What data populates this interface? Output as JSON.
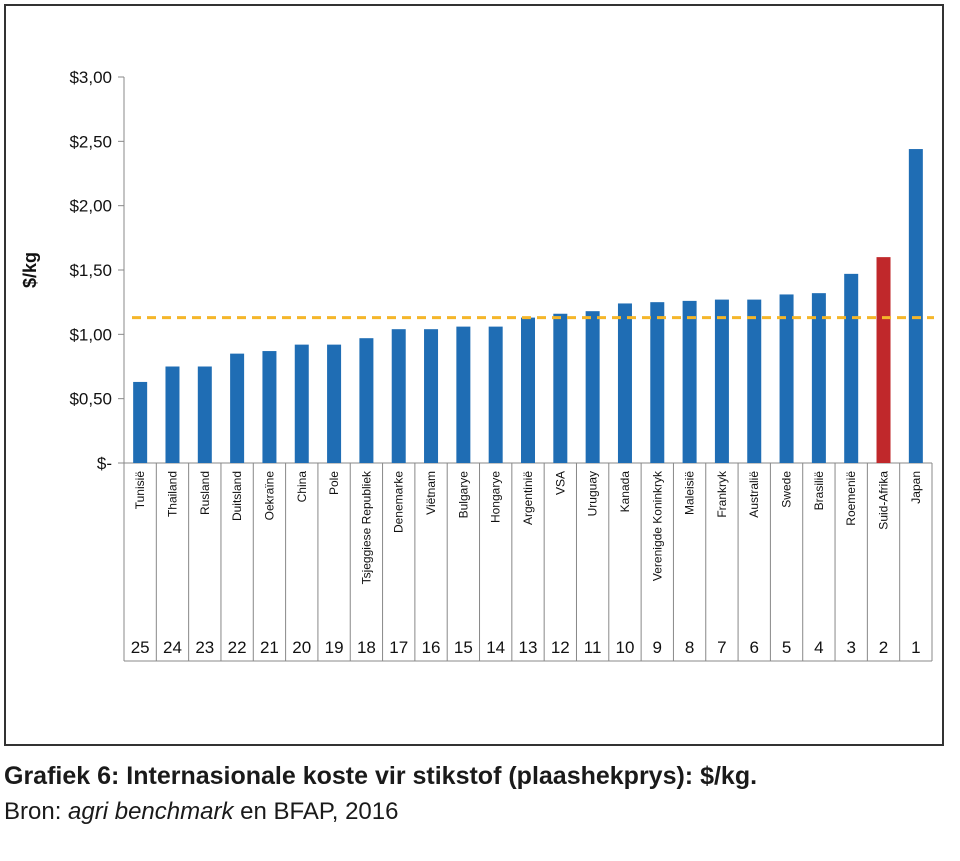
{
  "chart_data": {
    "type": "bar",
    "ylabel": "$/kg",
    "ylim": [
      0,
      3.0
    ],
    "yticks": [
      {
        "value": 0,
        "label": "$-"
      },
      {
        "value": 0.5,
        "label": "$0,50"
      },
      {
        "value": 1.0,
        "label": "$1,00"
      },
      {
        "value": 1.5,
        "label": "$1,50"
      },
      {
        "value": 2.0,
        "label": "$2,00"
      },
      {
        "value": 2.5,
        "label": "$2,50"
      },
      {
        "value": 3.0,
        "label": "$3,00"
      }
    ],
    "categories": [
      "Tunisië",
      "Thailand",
      "Rusland",
      "Duitsland",
      "Oekraïne",
      "China",
      "Pole",
      "Tsjeggiese Republiek",
      "Denemarke",
      "Viëtnam",
      "Bulgarye",
      "Hongarye",
      "Argentinië",
      "VSA",
      "Uruguay",
      "Kanada",
      "Verenigde Koninkryk",
      "Maleisië",
      "Frankryk",
      "Australië",
      "Swede",
      "Brasilië",
      "Roemenië",
      "Suid-Afrika",
      "Japan"
    ],
    "ranks": [
      "25",
      "24",
      "23",
      "22",
      "21",
      "20",
      "19",
      "18",
      "17",
      "16",
      "15",
      "14",
      "13",
      "12",
      "11",
      "10",
      "9",
      "8",
      "7",
      "6",
      "5",
      "4",
      "3",
      "2",
      "1"
    ],
    "values": [
      0.63,
      0.75,
      0.75,
      0.85,
      0.87,
      0.92,
      0.92,
      0.97,
      1.04,
      1.04,
      1.06,
      1.06,
      1.13,
      1.16,
      1.18,
      1.24,
      1.25,
      1.26,
      1.27,
      1.27,
      1.31,
      1.32,
      1.47,
      1.6,
      2.44
    ],
    "reference_line": {
      "value": 1.13,
      "style": "dashed",
      "color": "#f5b62a"
    },
    "colors": {
      "default": "#1f6db4",
      "highlight": "#c0282b"
    },
    "highlight_category": "Suid-Afrika",
    "grid": false
  },
  "caption": {
    "title": "Grafiek 6: Internasionale koste vir stikstof (plaashekprys): $/kg.",
    "source_prefix": "Bron: ",
    "source_italic": "agri benchmark",
    "source_suffix": " en BFAP, 2016"
  }
}
